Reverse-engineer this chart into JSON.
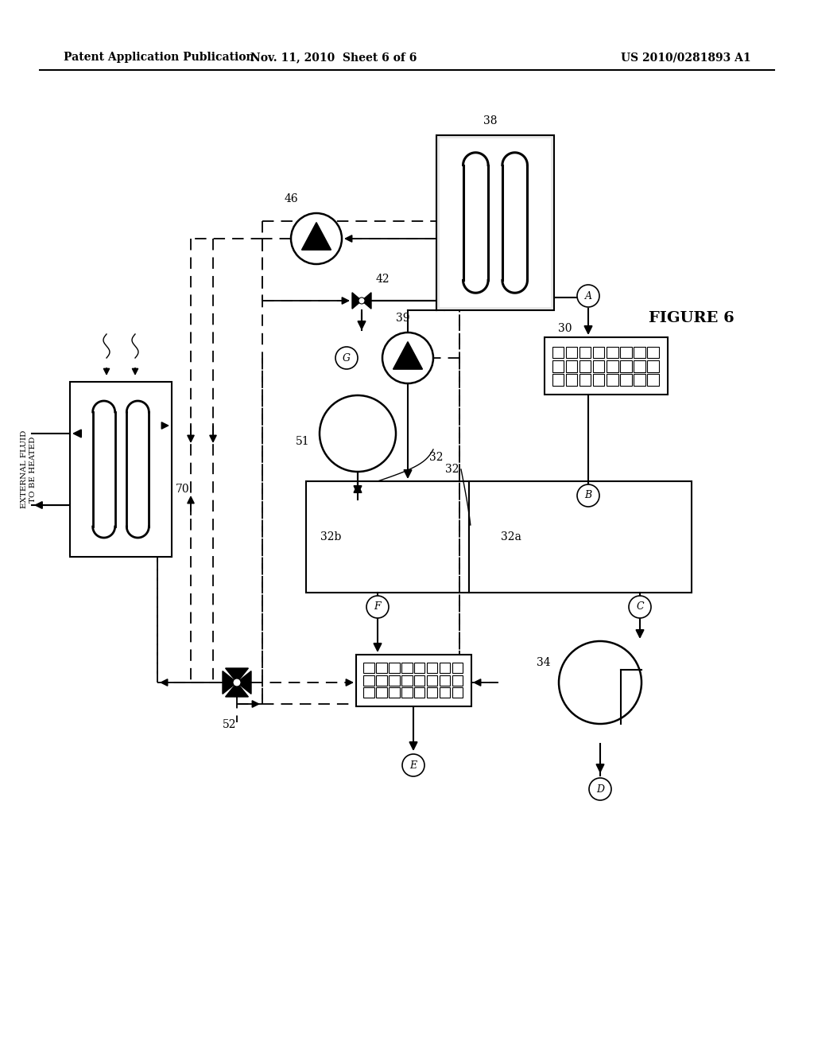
{
  "header_left": "Patent Application Publication",
  "header_mid": "Nov. 11, 2010  Sheet 6 of 6",
  "header_right": "US 2010/0281893 A1",
  "figure_label": "FIGURE 6",
  "bg_color": "#ffffff",
  "lc": "#000000"
}
